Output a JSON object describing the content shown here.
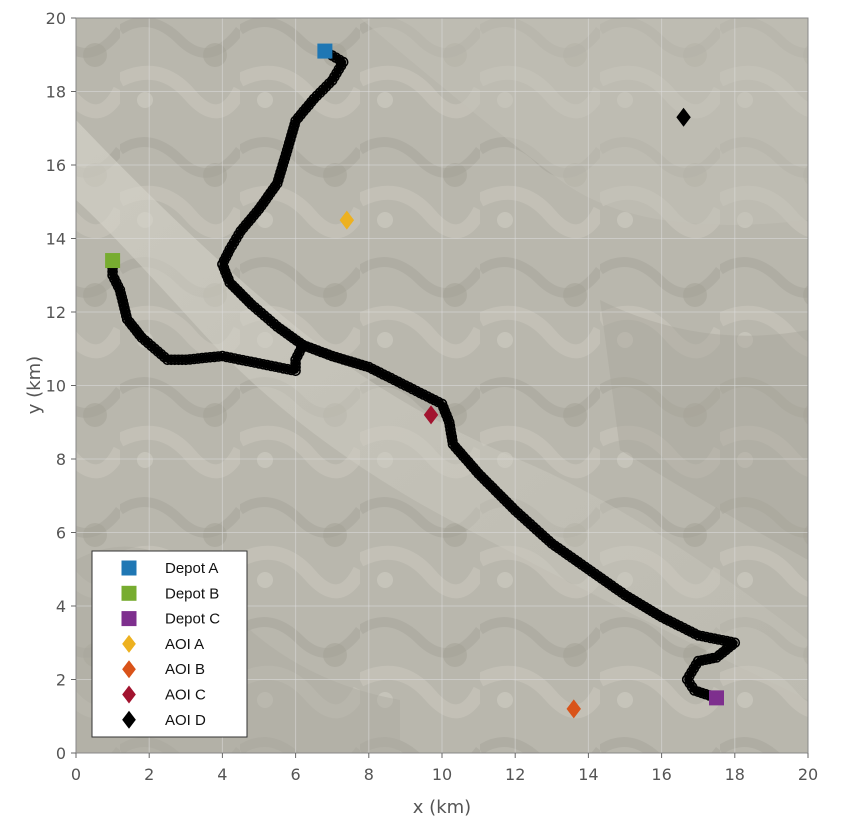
{
  "chart_data": {
    "type": "scatter",
    "title": "",
    "xlabel": "x (km)",
    "ylabel": "y (km)",
    "xlim": [
      0,
      20
    ],
    "ylim": [
      0,
      20
    ],
    "xticks": [
      0,
      2,
      4,
      6,
      8,
      10,
      12,
      14,
      16,
      18,
      20
    ],
    "yticks": [
      0,
      2,
      4,
      6,
      8,
      10,
      12,
      14,
      16,
      18,
      20
    ],
    "grid": true,
    "background": "satellite terrain image",
    "legend_position": "bottom-left",
    "depots": [
      {
        "name": "Depot A",
        "marker": "square",
        "color": "#1f77b4",
        "x": 6.8,
        "y": 19.1
      },
      {
        "name": "Depot B",
        "marker": "square",
        "color": "#77ac30",
        "x": 1.0,
        "y": 13.4
      },
      {
        "name": "Depot C",
        "marker": "square",
        "color": "#7e2f8e",
        "x": 17.5,
        "y": 1.5
      }
    ],
    "aois": [
      {
        "name": "AOI A",
        "marker": "diamond",
        "color": "#edb120",
        "x": 7.4,
        "y": 14.5
      },
      {
        "name": "AOI B",
        "marker": "diamond",
        "color": "#d95319",
        "x": 13.6,
        "y": 1.2
      },
      {
        "name": "AOI C",
        "marker": "diamond",
        "color": "#a2142f",
        "x": 9.7,
        "y": 9.2
      },
      {
        "name": "AOI D",
        "marker": "diamond",
        "color": "#000000",
        "x": 16.6,
        "y": 17.3
      }
    ],
    "path": {
      "marker": "circle",
      "color": "#000000",
      "points": [
        [
          6.8,
          19.1
        ],
        [
          7.3,
          18.8
        ],
        [
          7.0,
          18.3
        ],
        [
          6.5,
          17.8
        ],
        [
          6.0,
          17.2
        ],
        [
          5.8,
          16.5
        ],
        [
          5.5,
          15.5
        ],
        [
          5.0,
          14.8
        ],
        [
          4.5,
          14.2
        ],
        [
          4.2,
          13.7
        ],
        [
          4.0,
          13.3
        ],
        [
          4.2,
          12.8
        ],
        [
          4.8,
          12.2
        ],
        [
          5.5,
          11.6
        ],
        [
          6.2,
          11.1
        ],
        [
          7.0,
          10.8
        ],
        [
          8.0,
          10.5
        ],
        [
          9.0,
          10.0
        ],
        [
          10.0,
          9.5
        ],
        [
          10.2,
          9.0
        ],
        [
          10.3,
          8.4
        ],
        [
          11.0,
          7.6
        ],
        [
          12.0,
          6.6
        ],
        [
          13.0,
          5.7
        ],
        [
          14.0,
          5.0
        ],
        [
          15.0,
          4.3
        ],
        [
          16.0,
          3.7
        ],
        [
          17.0,
          3.2
        ],
        [
          18.0,
          3.0
        ],
        [
          17.5,
          2.6
        ],
        [
          17.0,
          2.5
        ],
        [
          16.7,
          2.0
        ],
        [
          16.9,
          1.7
        ],
        [
          17.5,
          1.5
        ]
      ],
      "branch": [
        [
          6.2,
          11.1
        ],
        [
          6.0,
          10.7
        ],
        [
          6.0,
          10.4
        ],
        [
          5.0,
          10.6
        ],
        [
          4.0,
          10.8
        ],
        [
          3.0,
          10.7
        ],
        [
          2.5,
          10.7
        ],
        [
          1.8,
          11.3
        ],
        [
          1.4,
          11.8
        ],
        [
          1.2,
          12.6
        ],
        [
          1.0,
          13.0
        ],
        [
          1.0,
          13.4
        ]
      ]
    },
    "legend": [
      "Depot A",
      "Depot B",
      "Depot C",
      "AOI A",
      "AOI B",
      "AOI C",
      "AOI D"
    ]
  }
}
